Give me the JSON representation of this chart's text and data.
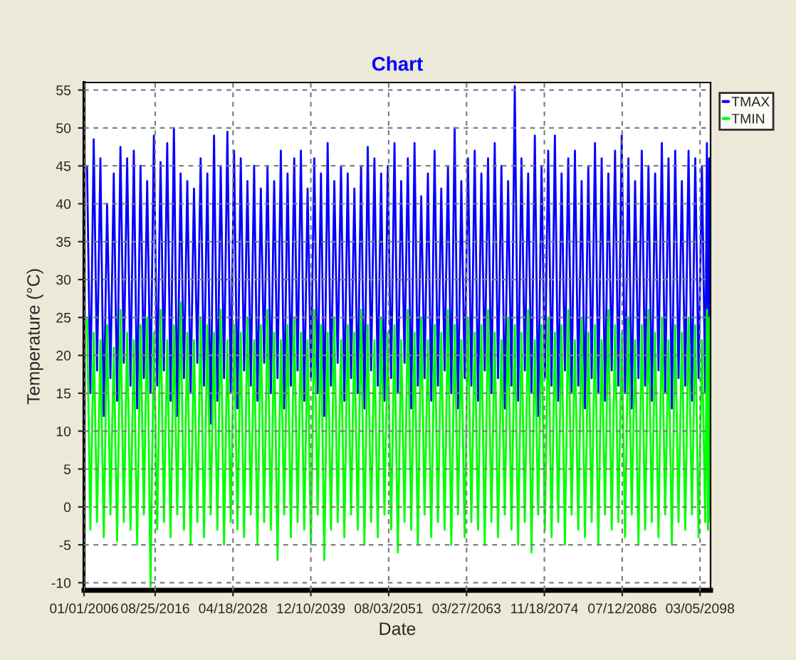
{
  "chart_data": {
    "type": "line",
    "title": "Chart",
    "xlabel": "Date",
    "ylabel": "Temperature (°C)",
    "x": [
      "2006-06-15",
      "2006-12-15",
      "2007-06-15",
      "2007-12-15",
      "2008-06-15",
      "2008-12-15",
      "2009-06-15",
      "2009-12-15",
      "2010-06-15",
      "2010-12-15",
      "2011-06-15",
      "2011-12-15",
      "2012-06-15",
      "2012-12-15",
      "2013-06-15",
      "2013-12-15",
      "2014-06-15",
      "2014-12-15",
      "2015-06-15",
      "2015-12-15",
      "2016-06-15",
      "2016-12-15",
      "2017-06-15",
      "2017-12-15",
      "2018-06-15",
      "2018-12-15",
      "2019-06-15",
      "2019-12-15",
      "2020-06-15",
      "2020-12-15",
      "2021-06-15",
      "2021-12-15",
      "2022-06-15",
      "2022-12-15",
      "2023-06-15",
      "2023-12-15",
      "2024-06-15",
      "2024-12-15",
      "2025-06-15",
      "2025-12-15",
      "2026-06-15",
      "2026-12-15",
      "2027-06-15",
      "2027-12-15",
      "2028-06-15",
      "2028-12-15",
      "2029-06-15",
      "2029-12-15",
      "2030-06-15",
      "2030-12-15",
      "2031-06-15",
      "2031-12-15",
      "2032-06-15",
      "2032-12-15",
      "2033-06-15",
      "2033-12-15",
      "2034-06-15",
      "2034-12-15",
      "2035-06-15",
      "2035-12-15",
      "2036-06-15",
      "2036-12-15",
      "2037-06-15",
      "2037-12-15",
      "2038-06-15",
      "2038-12-15",
      "2039-06-15",
      "2039-12-15",
      "2040-06-15",
      "2040-12-15",
      "2041-06-15",
      "2041-12-15",
      "2042-06-15",
      "2042-12-15",
      "2043-06-15",
      "2043-12-15",
      "2044-06-15",
      "2044-12-15",
      "2045-06-15",
      "2045-12-15",
      "2046-06-15",
      "2046-12-15",
      "2047-06-15",
      "2047-12-15",
      "2048-06-15",
      "2048-12-15",
      "2049-06-15",
      "2049-12-15",
      "2050-06-15",
      "2050-12-15",
      "2051-06-15",
      "2051-12-15",
      "2052-06-15",
      "2052-12-15",
      "2053-06-15",
      "2053-12-15",
      "2054-06-15",
      "2054-12-15",
      "2055-06-15",
      "2055-12-15",
      "2056-06-15",
      "2056-12-15",
      "2057-06-15",
      "2057-12-15",
      "2058-06-15",
      "2058-12-15",
      "2059-06-15",
      "2059-12-15",
      "2060-06-15",
      "2060-12-15",
      "2061-06-15",
      "2061-12-15",
      "2062-06-15",
      "2062-12-15",
      "2063-06-15",
      "2063-12-15",
      "2064-06-15",
      "2064-12-15",
      "2065-06-15",
      "2065-12-15",
      "2066-06-15",
      "2066-12-15",
      "2067-06-15",
      "2067-12-15",
      "2068-06-15",
      "2068-12-15",
      "2069-06-15",
      "2069-12-15",
      "2070-06-15",
      "2070-12-15",
      "2071-06-15",
      "2071-12-15",
      "2072-06-15",
      "2072-12-15",
      "2073-06-15",
      "2073-12-15",
      "2074-06-15",
      "2074-12-15",
      "2075-06-15",
      "2075-12-15",
      "2076-06-15",
      "2076-12-15",
      "2077-06-15",
      "2077-12-15",
      "2078-06-15",
      "2078-12-15",
      "2079-06-15",
      "2079-12-15",
      "2080-06-15",
      "2080-12-15",
      "2081-06-15",
      "2081-12-15",
      "2082-06-15",
      "2082-12-15",
      "2083-06-15",
      "2083-12-15",
      "2084-06-15",
      "2084-12-15",
      "2085-06-15",
      "2085-12-15",
      "2086-06-15",
      "2086-12-15",
      "2087-06-15",
      "2087-12-15",
      "2088-06-15",
      "2088-12-15",
      "2089-06-15",
      "2089-12-15",
      "2090-06-15",
      "2090-12-15",
      "2091-06-15",
      "2091-12-15",
      "2092-06-15",
      "2092-12-15",
      "2093-06-15",
      "2093-12-15",
      "2094-06-15",
      "2094-12-15",
      "2095-06-15",
      "2095-12-15",
      "2096-06-15",
      "2096-12-15",
      "2097-06-15",
      "2097-12-15",
      "2098-06-15",
      "2098-12-15",
      "2099-03-15",
      "2099-05-15",
      "2099-07-15",
      "2099-09-15"
    ],
    "series": [
      {
        "name": "TMAX",
        "color": "#0000ff",
        "values": [
          45,
          15,
          48.5,
          18,
          46,
          12,
          40,
          17,
          44,
          14,
          47.5,
          19,
          46,
          16,
          47,
          13,
          45,
          17,
          43,
          15,
          49,
          16,
          45.5,
          18,
          48,
          14,
          50,
          12,
          44,
          17,
          43,
          15,
          42,
          19,
          46,
          16,
          44,
          11,
          49,
          14,
          45,
          17,
          49.5,
          15,
          47,
          13,
          46,
          18,
          43,
          16,
          45,
          14,
          42,
          19,
          45,
          15,
          43,
          17,
          47,
          13,
          44,
          16,
          46,
          18,
          47,
          14,
          42,
          17,
          46,
          15,
          44,
          12,
          48,
          16,
          43,
          19,
          45,
          14,
          44,
          17,
          42,
          15,
          45,
          13,
          47.5,
          18,
          46,
          16,
          44,
          14,
          45,
          17,
          48,
          15,
          43,
          19,
          46,
          13,
          48,
          16,
          41,
          17,
          44,
          14,
          47,
          16,
          42,
          18,
          45,
          15,
          50,
          13,
          43,
          17,
          46,
          16,
          47,
          14,
          44,
          18,
          46,
          15,
          48,
          17,
          45,
          13,
          43,
          16,
          55.5,
          14,
          46,
          18,
          44,
          15,
          49,
          12,
          45,
          17,
          47,
          16,
          49,
          14,
          44,
          18,
          46,
          15,
          47,
          16,
          43,
          13,
          45,
          17,
          48,
          15,
          46,
          14,
          44,
          18,
          47,
          16,
          49,
          15,
          46,
          13,
          43,
          17,
          47,
          16,
          45,
          14,
          44,
          18,
          48,
          15,
          46,
          13,
          47,
          17,
          43,
          16,
          47,
          14,
          46,
          17,
          45,
          15,
          48,
          18,
          46,
          16
        ]
      },
      {
        "name": "TMIN",
        "color": "#00ff00",
        "values": [
          25,
          -3,
          23,
          -2,
          22,
          -4,
          24,
          -1,
          21,
          -4.5,
          26,
          -2,
          23,
          -3,
          22,
          -5,
          24,
          -1,
          25,
          -10.5,
          23,
          -3,
          26,
          -2,
          22,
          -4,
          24,
          -1,
          27,
          -3,
          23,
          -5,
          22,
          -2,
          25,
          -4,
          24,
          -1,
          23,
          -3,
          26,
          -5,
          22,
          -2,
          24,
          -3,
          23,
          -4,
          25,
          -1,
          22,
          -5,
          24,
          -2,
          26,
          -3,
          23,
          -7,
          22,
          -1,
          24,
          -4,
          25,
          -2,
          23,
          -3,
          22,
          -5,
          26,
          -1,
          24,
          -7,
          23,
          -3,
          25,
          -2,
          22,
          -4,
          24,
          -1,
          23,
          -3,
          26,
          -5,
          24,
          -2,
          22,
          -4,
          25,
          -1,
          23,
          -3,
          24,
          -6,
          22,
          -2,
          26,
          -3,
          23,
          -5,
          25,
          -1,
          22,
          -4,
          24,
          -2,
          23,
          -3,
          26,
          -5,
          24,
          -1,
          22,
          -4,
          25,
          -2,
          23,
          -3,
          24,
          -5,
          26,
          -2,
          23,
          -4,
          22,
          -1,
          25,
          -3,
          24,
          -5,
          23,
          -2,
          26,
          -6,
          22,
          -1,
          24,
          -3,
          25,
          -4,
          23,
          -2,
          24,
          -5,
          26,
          -1,
          22,
          -3,
          25,
          -4,
          23,
          -2,
          24,
          -5,
          22,
          -1,
          26,
          -3,
          24,
          -2,
          23,
          -4,
          25,
          -1,
          22,
          -5,
          24,
          -3,
          26,
          -2,
          23,
          -4,
          25,
          -1,
          22,
          -5,
          24,
          -2,
          23,
          -3,
          25,
          -1,
          24,
          -4,
          22,
          -2,
          26,
          -3,
          25,
          -2
        ]
      }
    ],
    "xlim": [
      "2006-01-01",
      "2099-09-30"
    ],
    "xticks": [
      {
        "value": "2006-01-01",
        "label": "01/01/2006"
      },
      {
        "value": "2016-08-25",
        "label": "08/25/2016"
      },
      {
        "value": "2028-04-18",
        "label": "04/18/2028"
      },
      {
        "value": "2039-12-10",
        "label": "12/10/2039"
      },
      {
        "value": "2051-08-03",
        "label": "08/03/2051"
      },
      {
        "value": "2063-03-27",
        "label": "03/27/2063"
      },
      {
        "value": "2074-11-18",
        "label": "11/18/2074"
      },
      {
        "value": "2086-07-12",
        "label": "07/12/2086"
      },
      {
        "value": "2098-03-05",
        "label": "03/05/2098"
      }
    ],
    "ylim": [
      -11,
      56
    ],
    "yticks": [
      -10,
      -5,
      0,
      5,
      10,
      15,
      20,
      25,
      30,
      35,
      40,
      45,
      50,
      55
    ],
    "grid": true,
    "legend": "top right",
    "marker": "none",
    "line_style": "solid"
  }
}
